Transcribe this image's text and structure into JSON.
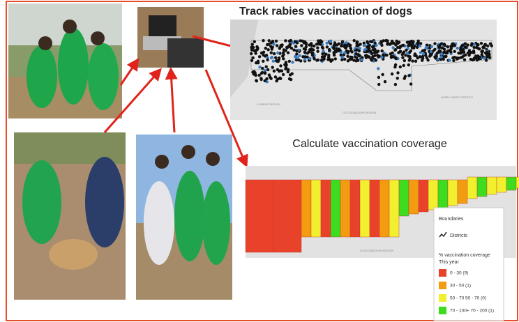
{
  "steps": [
    {
      "title": "Track rabies vaccination of dogs"
    },
    {
      "title": "Calculate vaccination coverage"
    }
  ],
  "map_labels": [
    "KUNENE REGION",
    "OTJOZONDJUPA REGION",
    "NORTH WEST DISTRICT"
  ],
  "legend": {
    "heading": "Boundaries",
    "boundary": "Districts",
    "measure": "% vaccination coverage",
    "period": "This year",
    "items": [
      {
        "label": "0 - 30 (9)",
        "color": "#e8432a"
      },
      {
        "label": "30 - 50 (1)",
        "color": "#f39c12"
      },
      {
        "label": "50 - 70 50 - 70 (0)",
        "color": "#f2ef2e"
      },
      {
        "label": "70 - 100+ 70 - 200 (1)",
        "color": "#3ddc1e"
      }
    ]
  }
}
